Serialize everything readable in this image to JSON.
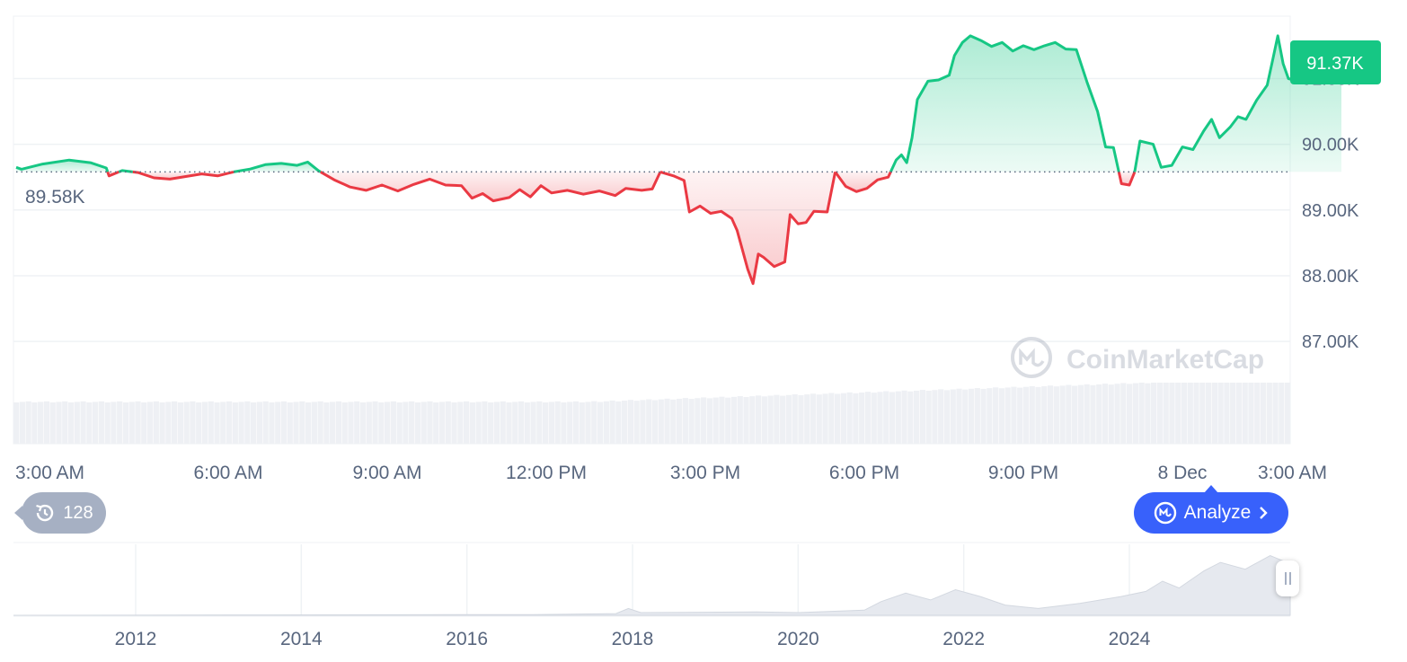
{
  "chart_data": {
    "type": "area",
    "y_axis": {
      "ticks": [
        "87.00K",
        "88.00K",
        "89.00K",
        "90.00K",
        "91.00K"
      ],
      "tick_values": [
        87000,
        88000,
        89000,
        90000,
        91000
      ],
      "range": [
        86400,
        91950
      ],
      "position": "right"
    },
    "x_axis": {
      "ticks": [
        "3:00 AM",
        "6:00 AM",
        "9:00 AM",
        "12:00 PM",
        "3:00 PM",
        "6:00 PM",
        "9:00 PM",
        "8 Dec",
        "3:00 AM"
      ],
      "range_hours": [
        2,
        26
      ]
    },
    "baseline": {
      "value": 89580,
      "label": "89.58K"
    },
    "current_price": {
      "value": 91370,
      "label": "91.37K"
    },
    "series": [
      {
        "values": [
          [
            2.0,
            89650
          ],
          [
            2.1,
            89620
          ],
          [
            2.5,
            89700
          ],
          [
            3.0,
            89760
          ],
          [
            3.4,
            89720
          ],
          [
            3.7,
            89640
          ],
          [
            3.75,
            89520
          ],
          [
            4.0,
            89600
          ],
          [
            4.3,
            89570
          ],
          [
            4.6,
            89490
          ],
          [
            4.9,
            89470
          ],
          [
            5.2,
            89510
          ],
          [
            5.5,
            89550
          ],
          [
            5.8,
            89520
          ],
          [
            6.1,
            89580
          ],
          [
            6.4,
            89620
          ],
          [
            6.7,
            89690
          ],
          [
            7.0,
            89710
          ],
          [
            7.3,
            89680
          ],
          [
            7.5,
            89730
          ],
          [
            7.7,
            89600
          ],
          [
            8.0,
            89460
          ],
          [
            8.3,
            89350
          ],
          [
            8.6,
            89300
          ],
          [
            8.9,
            89380
          ],
          [
            9.2,
            89290
          ],
          [
            9.5,
            89390
          ],
          [
            9.8,
            89470
          ],
          [
            10.1,
            89380
          ],
          [
            10.4,
            89370
          ],
          [
            10.6,
            89180
          ],
          [
            10.8,
            89250
          ],
          [
            11.0,
            89140
          ],
          [
            11.3,
            89190
          ],
          [
            11.5,
            89310
          ],
          [
            11.7,
            89200
          ],
          [
            11.9,
            89370
          ],
          [
            12.1,
            89260
          ],
          [
            12.4,
            89300
          ],
          [
            12.7,
            89240
          ],
          [
            13.0,
            89290
          ],
          [
            13.3,
            89220
          ],
          [
            13.5,
            89330
          ],
          [
            13.8,
            89300
          ],
          [
            14.0,
            89320
          ],
          [
            14.15,
            89580
          ],
          [
            14.4,
            89520
          ],
          [
            14.6,
            89450
          ],
          [
            14.7,
            88970
          ],
          [
            14.9,
            89060
          ],
          [
            15.1,
            88950
          ],
          [
            15.3,
            88980
          ],
          [
            15.5,
            88870
          ],
          [
            15.6,
            88690
          ],
          [
            15.8,
            88100
          ],
          [
            15.9,
            87880
          ],
          [
            16.0,
            88330
          ],
          [
            16.1,
            88280
          ],
          [
            16.3,
            88140
          ],
          [
            16.5,
            88210
          ],
          [
            16.6,
            88930
          ],
          [
            16.75,
            88790
          ],
          [
            16.9,
            88810
          ],
          [
            17.05,
            88980
          ],
          [
            17.3,
            88970
          ],
          [
            17.45,
            89580
          ],
          [
            17.65,
            89360
          ],
          [
            17.85,
            89280
          ],
          [
            18.05,
            89330
          ],
          [
            18.25,
            89460
          ],
          [
            18.45,
            89500
          ],
          [
            18.6,
            89760
          ],
          [
            18.7,
            89840
          ],
          [
            18.8,
            89720
          ],
          [
            18.9,
            90100
          ],
          [
            19.0,
            90680
          ],
          [
            19.2,
            90960
          ],
          [
            19.4,
            90980
          ],
          [
            19.6,
            91050
          ],
          [
            19.7,
            91350
          ],
          [
            19.85,
            91550
          ],
          [
            20.0,
            91650
          ],
          [
            20.2,
            91580
          ],
          [
            20.4,
            91490
          ],
          [
            20.6,
            91550
          ],
          [
            20.8,
            91420
          ],
          [
            21.0,
            91500
          ],
          [
            21.2,
            91440
          ],
          [
            21.4,
            91500
          ],
          [
            21.6,
            91550
          ],
          [
            21.8,
            91450
          ],
          [
            22.0,
            91440
          ],
          [
            22.2,
            90950
          ],
          [
            22.4,
            90500
          ],
          [
            22.55,
            89960
          ],
          [
            22.7,
            89950
          ],
          [
            22.85,
            89400
          ],
          [
            23.0,
            89380
          ],
          [
            23.1,
            89580
          ],
          [
            23.2,
            90050
          ],
          [
            23.45,
            90000
          ],
          [
            23.6,
            89650
          ],
          [
            23.8,
            89680
          ],
          [
            24.0,
            89960
          ],
          [
            24.2,
            89920
          ],
          [
            24.4,
            90200
          ],
          [
            24.55,
            90380
          ],
          [
            24.7,
            90100
          ],
          [
            24.9,
            90260
          ],
          [
            25.05,
            90420
          ],
          [
            25.2,
            90380
          ],
          [
            25.4,
            90670
          ],
          [
            25.6,
            90900
          ],
          [
            25.7,
            91270
          ],
          [
            25.8,
            91650
          ],
          [
            25.9,
            91230
          ],
          [
            26.0,
            91000
          ],
          [
            26.2,
            90960
          ],
          [
            26.4,
            91070
          ],
          [
            26.6,
            91120
          ],
          [
            26.8,
            91250
          ],
          [
            27.0,
            91370
          ]
        ]
      }
    ],
    "colors": {
      "up": "#16c784",
      "down": "#ea3943"
    },
    "grid": true,
    "watermark": "CoinMarketCap",
    "navigator": {
      "ticks": [
        "2012",
        "2014",
        "2016",
        "2018",
        "2020",
        "2022",
        "2024"
      ],
      "history": [
        [
          2010.5,
          0.0
        ],
        [
          2013.5,
          0.01
        ],
        [
          2016.8,
          0.02
        ],
        [
          2017.8,
          0.05
        ],
        [
          2017.95,
          0.2
        ],
        [
          2018.1,
          0.08
        ],
        [
          2019.5,
          0.1
        ],
        [
          2020.0,
          0.08
        ],
        [
          2020.8,
          0.15
        ],
        [
          2021.0,
          0.4
        ],
        [
          2021.3,
          0.65
        ],
        [
          2021.6,
          0.45
        ],
        [
          2021.9,
          0.75
        ],
        [
          2022.2,
          0.55
        ],
        [
          2022.5,
          0.3
        ],
        [
          2022.9,
          0.2
        ],
        [
          2023.4,
          0.35
        ],
        [
          2023.9,
          0.55
        ],
        [
          2024.2,
          0.7
        ],
        [
          2024.4,
          1.0
        ],
        [
          2024.6,
          0.8
        ],
        [
          2024.9,
          1.3
        ],
        [
          2025.1,
          1.55
        ],
        [
          2025.4,
          1.35
        ],
        [
          2025.7,
          1.75
        ],
        [
          2025.9,
          1.55
        ],
        [
          2026.0,
          1.5
        ]
      ]
    }
  },
  "controls": {
    "history_count": "128",
    "analyze_label": "Analyze"
  }
}
